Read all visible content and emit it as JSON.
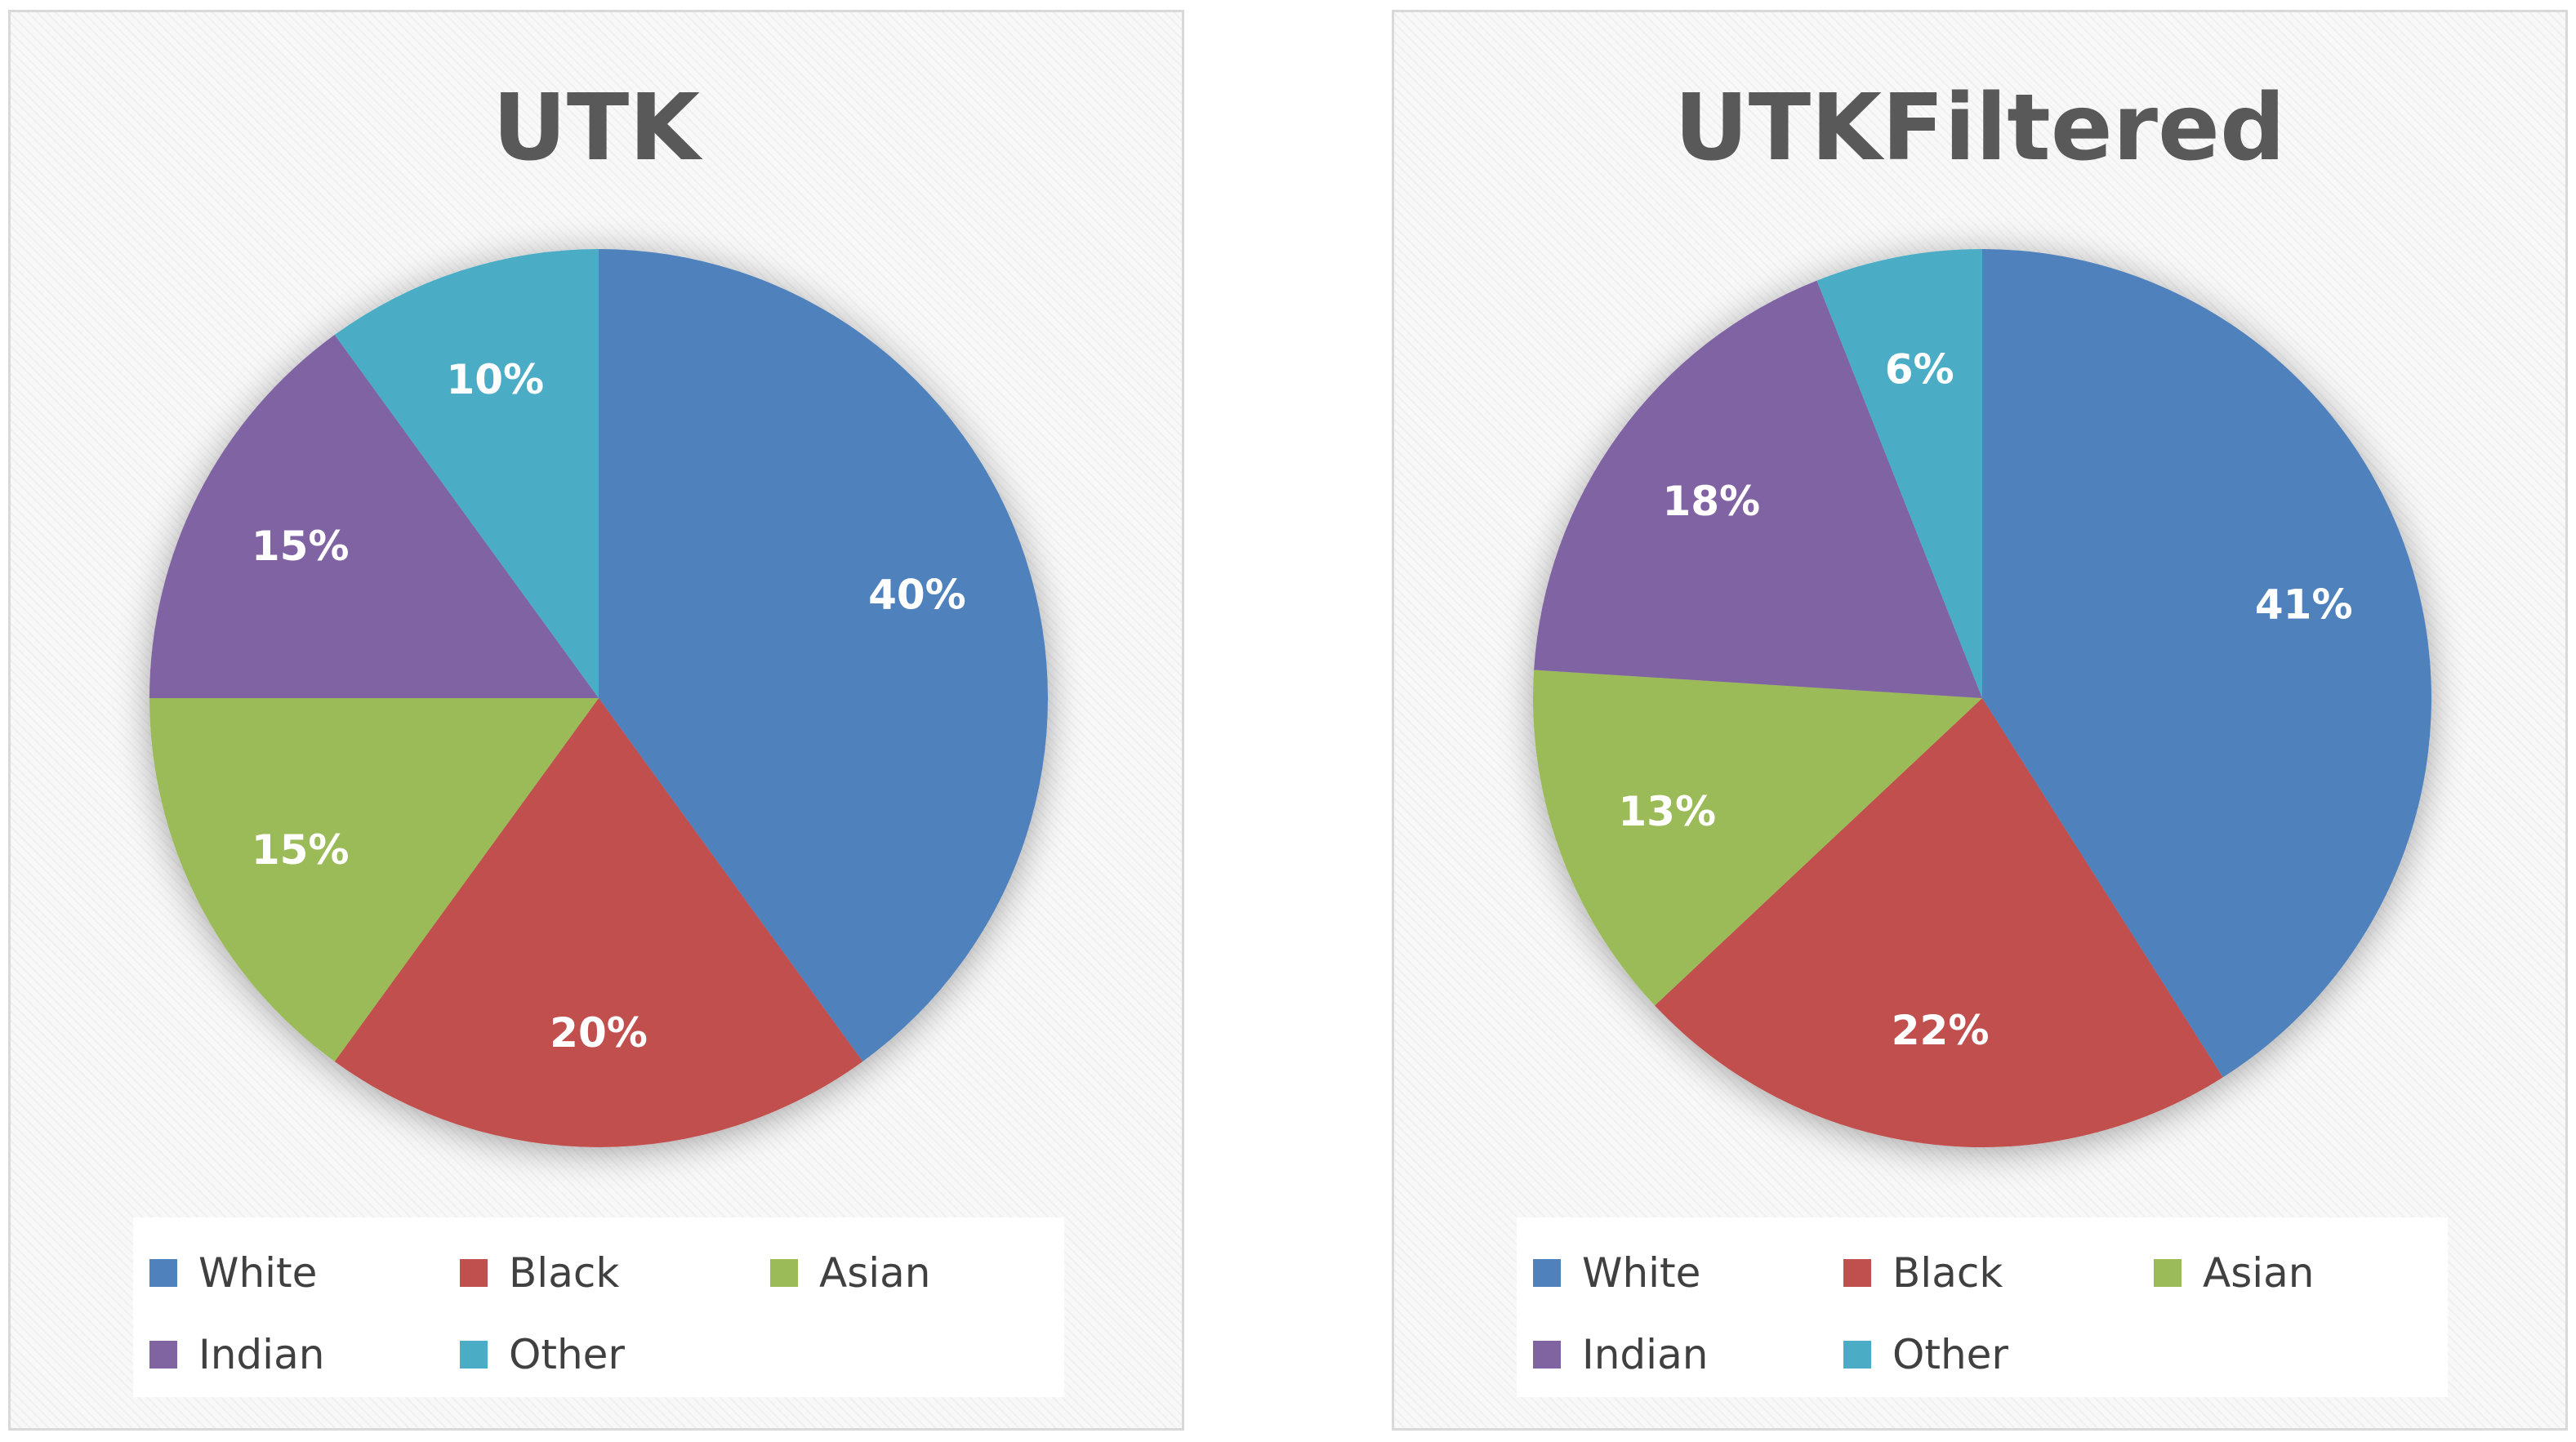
{
  "chart_data": [
    {
      "type": "pie",
      "title": "UTK",
      "categories": [
        "White",
        "Black",
        "Asian",
        "Indian",
        "Other"
      ],
      "values": [
        40,
        20,
        15,
        15,
        10
      ],
      "labels": [
        "40%",
        "20%",
        "15%",
        "15%",
        "10%"
      ],
      "colors": [
        "#4f81bd",
        "#c0504d",
        "#9bbb59",
        "#8064a2",
        "#4bacc6"
      ],
      "legend_position": "bottom"
    },
    {
      "type": "pie",
      "title": "UTKFiltered",
      "categories": [
        "White",
        "Black",
        "Asian",
        "Indian",
        "Other"
      ],
      "values": [
        41,
        22,
        13,
        18,
        6
      ],
      "labels": [
        "41%",
        "22%",
        "13%",
        "18%",
        "6%"
      ],
      "colors": [
        "#4f81bd",
        "#c0504d",
        "#9bbb59",
        "#8064a2",
        "#4bacc6"
      ],
      "legend_position": "bottom"
    }
  ]
}
